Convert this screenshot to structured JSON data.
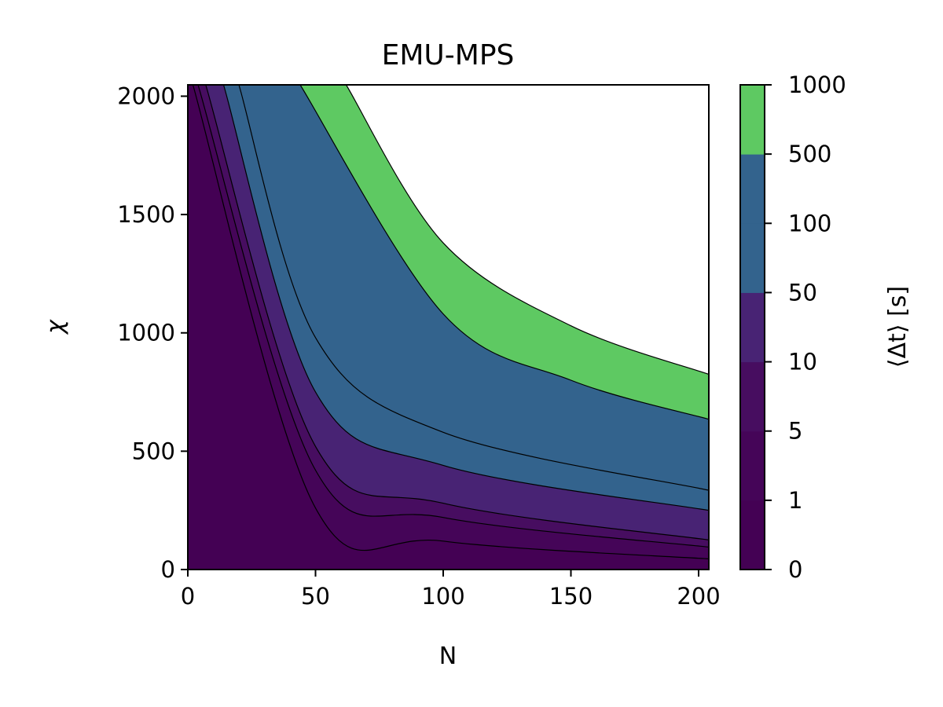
{
  "chart_data": {
    "type": "contourf",
    "title": "EMU-MPS",
    "xlabel": "N",
    "ylabel": "χ",
    "xlim": [
      0,
      204
    ],
    "ylim": [
      0,
      2048
    ],
    "xticks": [
      0,
      50,
      100,
      150,
      200
    ],
    "yticks": [
      0,
      500,
      1000,
      1500,
      2000
    ],
    "colorbar": {
      "label": "⟨Δt⟩ [s]",
      "levels": [
        0,
        1,
        5,
        10,
        50,
        100,
        500,
        1000
      ],
      "tick_labels": [
        "0",
        "1",
        "5",
        "10",
        "50",
        "100",
        "500",
        "1000"
      ],
      "colors": [
        "#440154",
        "#450558",
        "#470d60",
        "#482374",
        "#33638d",
        "#33638d",
        "#5ec962"
      ]
    },
    "contour_lines": [
      {
        "level": 1,
        "chi_at_N": [
          {
            "N": 2,
            "chi": 2048
          },
          {
            "N": 50,
            "chi": 260
          },
          {
            "N": 100,
            "chi": 120
          },
          {
            "N": 204,
            "chi": 45
          }
        ]
      },
      {
        "level": 5,
        "chi_at_N": [
          {
            "N": 4,
            "chi": 2048
          },
          {
            "N": 50,
            "chi": 420
          },
          {
            "N": 100,
            "chi": 220
          },
          {
            "N": 204,
            "chi": 95
          }
        ]
      },
      {
        "level": 10,
        "chi_at_N": [
          {
            "N": 7,
            "chi": 2048
          },
          {
            "N": 50,
            "chi": 520
          },
          {
            "N": 100,
            "chi": 280
          },
          {
            "N": 204,
            "chi": 125
          }
        ]
      },
      {
        "level": 50,
        "chi_at_N": [
          {
            "N": 14,
            "chi": 2048
          },
          {
            "N": 50,
            "chi": 750
          },
          {
            "N": 100,
            "chi": 440
          },
          {
            "N": 204,
            "chi": 250
          }
        ]
      },
      {
        "level": 100,
        "chi_at_N": [
          {
            "N": 20,
            "chi": 2048
          },
          {
            "N": 50,
            "chi": 980
          },
          {
            "N": 100,
            "chi": 580
          },
          {
            "N": 204,
            "chi": 335
          }
        ]
      },
      {
        "level": 500,
        "chi_at_N": [
          {
            "N": 44,
            "chi": 2048
          },
          {
            "N": 100,
            "chi": 1080
          },
          {
            "N": 150,
            "chi": 800
          },
          {
            "N": 204,
            "chi": 635
          }
        ]
      },
      {
        "level": 1000,
        "chi_at_N": [
          {
            "N": 62,
            "chi": 2048
          },
          {
            "N": 100,
            "chi": 1380
          },
          {
            "N": 150,
            "chi": 1030
          },
          {
            "N": 204,
            "chi": 825
          }
        ]
      }
    ]
  }
}
